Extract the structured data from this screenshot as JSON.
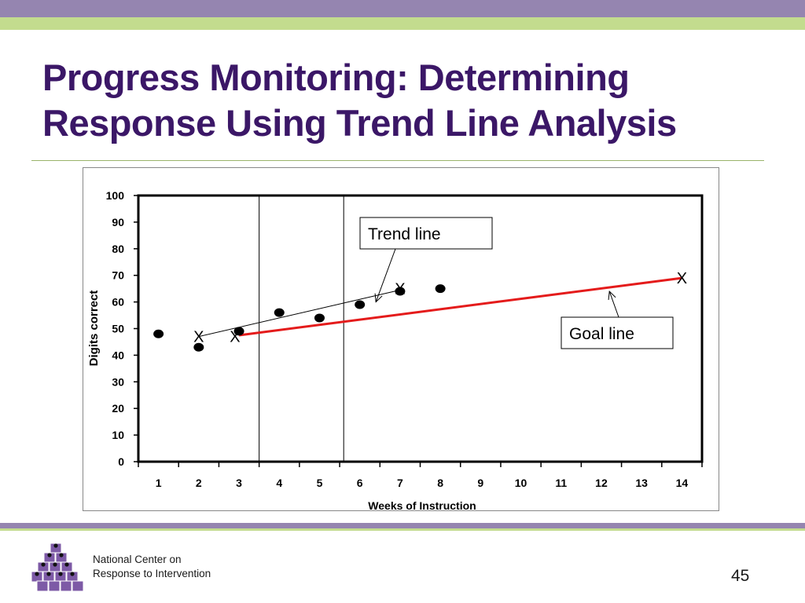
{
  "slide": {
    "title": "Progress Monitoring: Determining Response Using Trend Line Analysis",
    "org_line1": "National Center on",
    "org_line2": "Response to Intervention",
    "page_number": "45"
  },
  "colors": {
    "title": "#3b1767",
    "top_bar": "#9585b0",
    "accent_green": "#c3dc8e",
    "goal_line": "#e41b1b"
  },
  "chart_data": {
    "type": "scatter",
    "title": "",
    "xlabel": "Weeks of Instruction",
    "ylabel": "Digits correct",
    "x_ticks": [
      1,
      2,
      3,
      4,
      5,
      6,
      7,
      8,
      9,
      10,
      11,
      12,
      13,
      14
    ],
    "y_ticks": [
      0,
      10,
      20,
      30,
      40,
      50,
      60,
      70,
      80,
      90,
      100
    ],
    "xlim": [
      0.5,
      14.5
    ],
    "ylim": [
      0,
      100
    ],
    "grid": false,
    "phase_change_lines_x": [
      3.5,
      5.6
    ],
    "points": [
      {
        "x": 1,
        "y": 48
      },
      {
        "x": 2,
        "y": 43
      },
      {
        "x": 3,
        "y": 49
      },
      {
        "x": 4,
        "y": 56
      },
      {
        "x": 5,
        "y": 54
      },
      {
        "x": 6,
        "y": 59
      },
      {
        "x": 7,
        "y": 64
      },
      {
        "x": 8,
        "y": 65
      }
    ],
    "trend_line": {
      "from": [
        2,
        47
      ],
      "to": [
        7,
        64.5
      ]
    },
    "goal_line": {
      "from": [
        3,
        47.5
      ],
      "to": [
        14,
        69
      ]
    },
    "x_markers": [
      {
        "x": 2,
        "y": 47,
        "label": "X"
      },
      {
        "x": 2.9,
        "y": 47,
        "label": "X"
      },
      {
        "x": 7,
        "y": 65,
        "label": "X"
      },
      {
        "x": 14,
        "y": 69,
        "label": "X"
      }
    ],
    "annotations": [
      {
        "text": "Trend line",
        "points_to": [
          6.4,
          60
        ]
      },
      {
        "text": "Goal line",
        "points_to": [
          12.2,
          64
        ]
      }
    ]
  }
}
